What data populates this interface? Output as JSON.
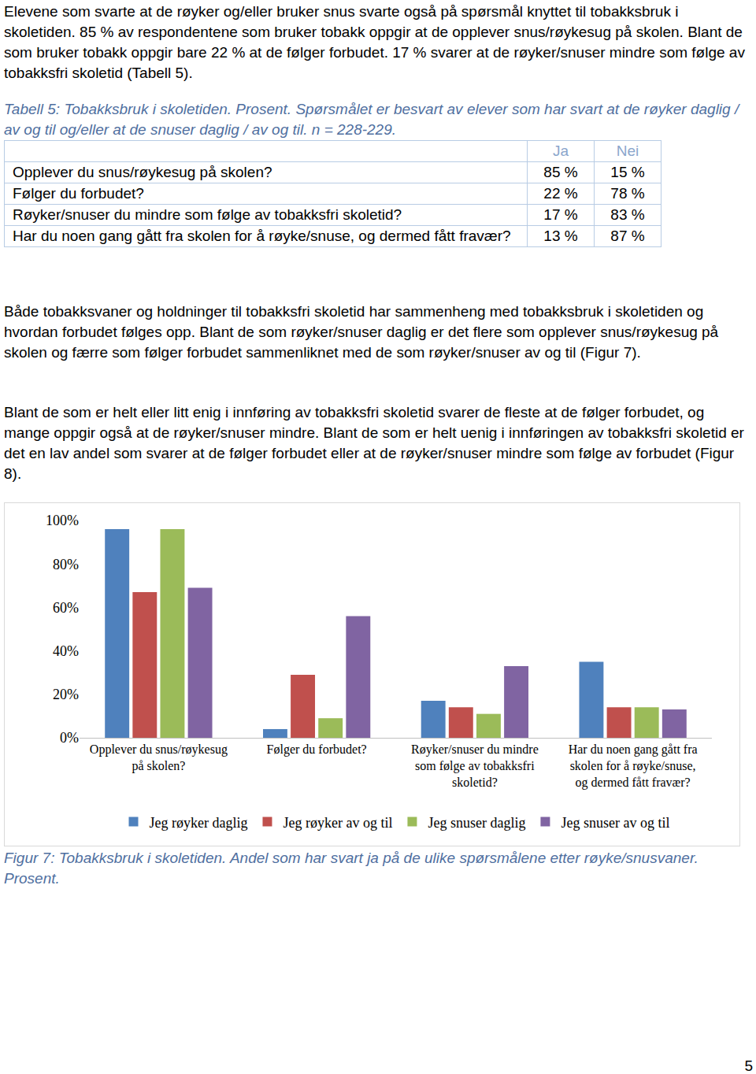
{
  "intro": "Elevene som svarte at de røyker og/eller bruker snus svarte også på spørsmål knyttet til tobakksbruk i skoletiden. 85 % av respondentene som bruker tobakk oppgir at de opplever snus/røykesug på skolen. Blant de som bruker tobakk oppgir bare 22 % at de følger forbudet. 17 % svarer at de røyker/snuser mindre som følge av tobakksfri skoletid (Tabell 5).",
  "table_caption": [
    "Tabell 5: Tobakksbruk i skoletiden. Prosent.",
    "Spørsmålet er besvart av elever som har svart at de røyker daglig / av og til og/eller at de snuser daglig / av og til. n = 228-229."
  ],
  "table": {
    "header": [
      "Ja",
      "Nei"
    ],
    "rows": [
      [
        "Opplever du snus/røykesug på skolen?",
        "85 %",
        "15 %"
      ],
      [
        "Følger du forbudet?",
        "22 %",
        "78 %"
      ],
      [
        "Røyker/snuser du mindre som følge av tobakksfri skoletid?",
        "17 %",
        "83 %"
      ],
      [
        "Har du noen gang gått fra skolen for å røyke/snuse, og dermed fått fravær?",
        "13 %",
        "87 %"
      ]
    ]
  },
  "paragraphs": [
    "Både tobakksvaner og holdninger til tobakksfri skoletid har sammenheng med tobakksbruk i skoletiden og hvordan forbudet følges opp. Blant de som røyker/snuser daglig er det flere som opplever snus/røykesug på skolen og færre som følger forbudet sammenliknet med de som røyker/snuser av og til (Figur 7).",
    "Blant de som er helt eller litt enig i innføring av tobakksfri skoletid svarer de fleste at de følger forbudet, og mange oppgir også at de røyker/snuser mindre. Blant de som er helt uenig i innføringen av tobakksfri skoletid er det en lav andel som svarer at de følger forbudet eller at de røyker/snuser mindre som følge av forbudet (Figur 8)."
  ],
  "chart_data": {
    "type": "bar",
    "categories": [
      "Opplever du snus/røykesug på skolen?",
      "Følger du forbudet?",
      "Røyker/snuser du mindre som følge av tobakksfri skoletid?",
      "Har du noen gang gått fra skolen for å røyke/snuse, og dermed fått fravær?"
    ],
    "series": [
      {
        "name": "Jeg røyker daglig",
        "color": "#4f81bd",
        "values": [
          96,
          4,
          17,
          35
        ]
      },
      {
        "name": "Jeg røyker av og til",
        "color": "#c0504d",
        "values": [
          67,
          29,
          14,
          14
        ]
      },
      {
        "name": "Jeg snuser daglig",
        "color": "#9bbb59",
        "values": [
          96,
          9,
          11,
          14
        ]
      },
      {
        "name": "Jeg snuser av og til",
        "color": "#8064a2",
        "values": [
          69,
          56,
          33,
          13
        ]
      }
    ],
    "ylim": [
      0,
      100
    ],
    "yticks": [
      {
        "value": 0,
        "label": "0%"
      },
      {
        "value": 20,
        "label": "20%"
      },
      {
        "value": 40,
        "label": "40%"
      },
      {
        "value": 60,
        "label": "60%"
      },
      {
        "value": 80,
        "label": "80%"
      },
      {
        "value": 100,
        "label": "100%"
      }
    ],
    "grid": false,
    "legend": "bottom"
  },
  "figure_caption": "Figur 7: Tobakksbruk i skoletiden. Andel som har svart ja på de ulike spørsmålene etter røyke/snusvaner. Prosent.",
  "page_number": "5"
}
